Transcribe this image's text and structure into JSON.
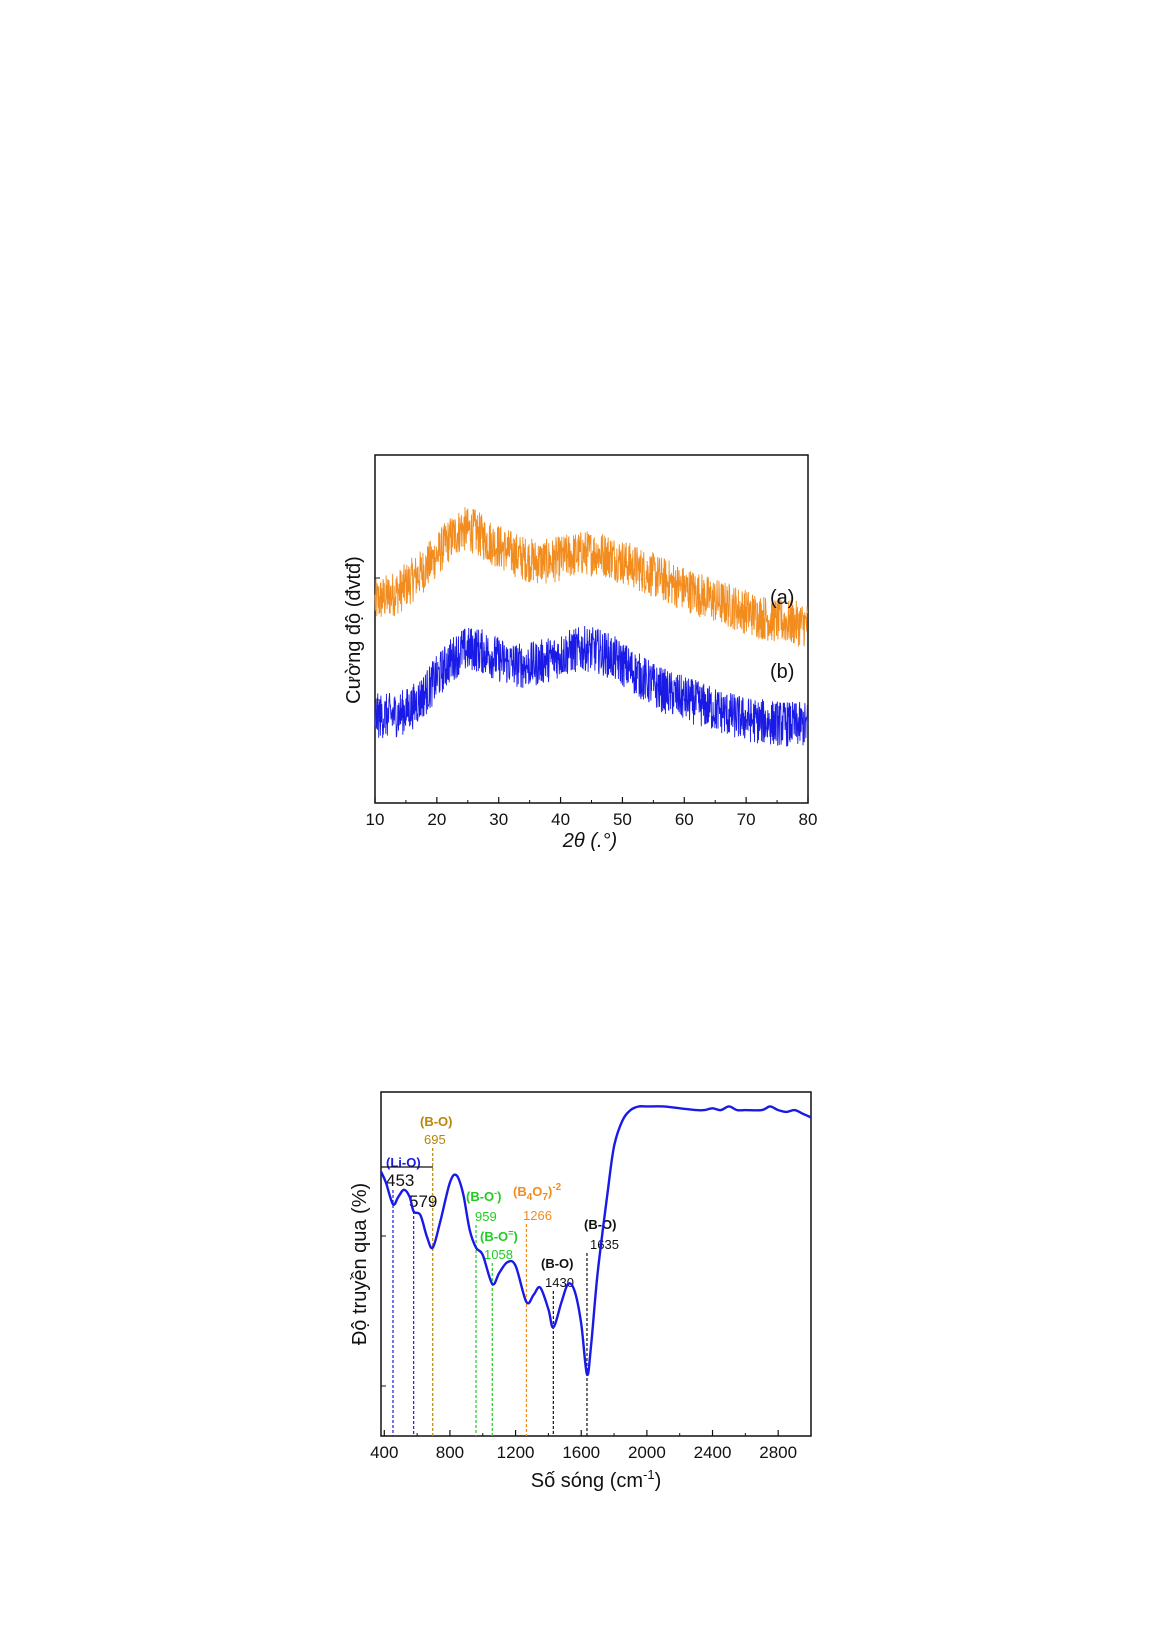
{
  "chart_data": [
    {
      "type": "line",
      "xlabel": "2θ (.°)",
      "ylabel": "Cường độ  (đvtđ)",
      "xlim": [
        10,
        80
      ],
      "x_ticks": [
        "10",
        "20",
        "30",
        "40",
        "50",
        "60",
        "70",
        "80"
      ],
      "y_ticks_shown": false,
      "series": [
        {
          "name": "(a)",
          "color": "#f28c1e",
          "x": [
            10,
            12,
            14,
            16,
            18,
            20,
            22,
            24,
            26,
            28,
            30,
            32,
            34,
            36,
            38,
            40,
            42,
            44,
            46,
            48,
            50,
            52,
            54,
            56,
            58,
            60,
            62,
            64,
            66,
            68,
            70,
            72,
            74,
            76,
            78,
            80
          ],
          "values": [
            3.85,
            3.9,
            3.95,
            4.05,
            4.15,
            4.28,
            4.42,
            4.52,
            4.5,
            4.42,
            4.36,
            4.3,
            4.25,
            4.22,
            4.22,
            4.25,
            4.28,
            4.3,
            4.3,
            4.27,
            4.22,
            4.17,
            4.12,
            4.07,
            4.02,
            3.97,
            3.93,
            3.88,
            3.84,
            3.8,
            3.76,
            3.72,
            3.69,
            3.67,
            3.65,
            3.64
          ]
        },
        {
          "name": "(b)",
          "color": "#1a1ae6",
          "x": [
            10,
            12,
            14,
            16,
            18,
            20,
            22,
            24,
            26,
            28,
            30,
            32,
            34,
            36,
            38,
            40,
            42,
            44,
            46,
            48,
            50,
            52,
            54,
            56,
            58,
            60,
            62,
            64,
            66,
            68,
            70,
            72,
            74,
            76,
            78,
            80
          ],
          "values": [
            2.8,
            2.8,
            2.82,
            2.88,
            3.0,
            3.15,
            3.3,
            3.4,
            3.42,
            3.38,
            3.32,
            3.28,
            3.26,
            3.28,
            3.32,
            3.36,
            3.4,
            3.42,
            3.4,
            3.35,
            3.28,
            3.2,
            3.12,
            3.05,
            3.0,
            2.96,
            2.92,
            2.88,
            2.84,
            2.8,
            2.77,
            2.75,
            2.74,
            2.73,
            2.72,
            2.72
          ]
        }
      ]
    },
    {
      "type": "line",
      "xlabel": "Số sóng (cm",
      "xlabel_sup": "-1",
      "xlabel_close": ")",
      "ylabel": "Độ truyền qua (%)",
      "xlim": [
        380,
        3000
      ],
      "x_ticks": [
        "400",
        "800",
        "1200",
        "1600",
        "2000",
        "2400",
        "2800"
      ],
      "y_ticks_shown": false,
      "series": [
        {
          "name": "",
          "color": "#1a1ae6",
          "x": [
            380,
            410,
            453,
            485,
            520,
            555,
            579,
            620,
            660,
            695,
            740,
            800,
            840,
            880,
            920,
            959,
            1000,
            1058,
            1100,
            1150,
            1200,
            1266,
            1310,
            1350,
            1400,
            1430,
            1480,
            1520,
            1560,
            1600,
            1635,
            1660,
            1700,
            1760,
            1800,
            1850,
            1900,
            1950,
            2000,
            2100,
            2200,
            2300,
            2350,
            2400,
            2450,
            2500,
            2550,
            2600,
            2700,
            2750,
            2800,
            2850,
            2900,
            2950,
            3000
          ],
          "values": [
            78,
            75,
            69,
            71,
            73,
            71,
            67,
            66,
            60,
            57,
            64,
            75,
            77,
            72,
            62,
            57,
            55,
            47,
            50,
            53,
            52,
            42,
            44,
            46,
            40,
            35,
            42,
            47,
            45,
            36,
            22,
            30,
            50,
            72,
            85,
            92,
            95,
            96,
            96,
            96,
            95.5,
            95,
            95,
            95.5,
            95,
            96,
            95,
            95,
            95,
            96,
            95,
            94.5,
            95,
            94,
            93
          ]
        }
      ],
      "annotations": [
        {
          "group": "(Li-O)",
          "value": "453",
          "x": 453,
          "color": "#1a1ae6",
          "big": true
        },
        {
          "group": "",
          "value": "579",
          "x": 579,
          "color": "#1a1ae6",
          "big": true
        },
        {
          "group": "(B-O)",
          "value": "695",
          "x": 695,
          "color": "#b8860b"
        },
        {
          "group": "(B-O",
          "group_sup": "-",
          "group_close": ")",
          "value": "959",
          "x": 959,
          "color": "#22cc22"
        },
        {
          "group": "(B-O",
          "group_sup": "=",
          "group_close": ")",
          "value": "1058",
          "x": 1058,
          "color": "#22cc22"
        },
        {
          "group": "(B",
          "group_sub1": "4",
          "group_mid": "O",
          "group_sub2": "7",
          "group_close": ")",
          "group_sup": "-2",
          "value": "1266",
          "x": 1266,
          "color": "#f28c1e"
        },
        {
          "group": "(B-O)",
          "value": "1430",
          "x": 1430,
          "color": "#111111"
        },
        {
          "group": "(B-O)",
          "value": "1635",
          "x": 1635,
          "color": "#111111"
        }
      ]
    }
  ]
}
